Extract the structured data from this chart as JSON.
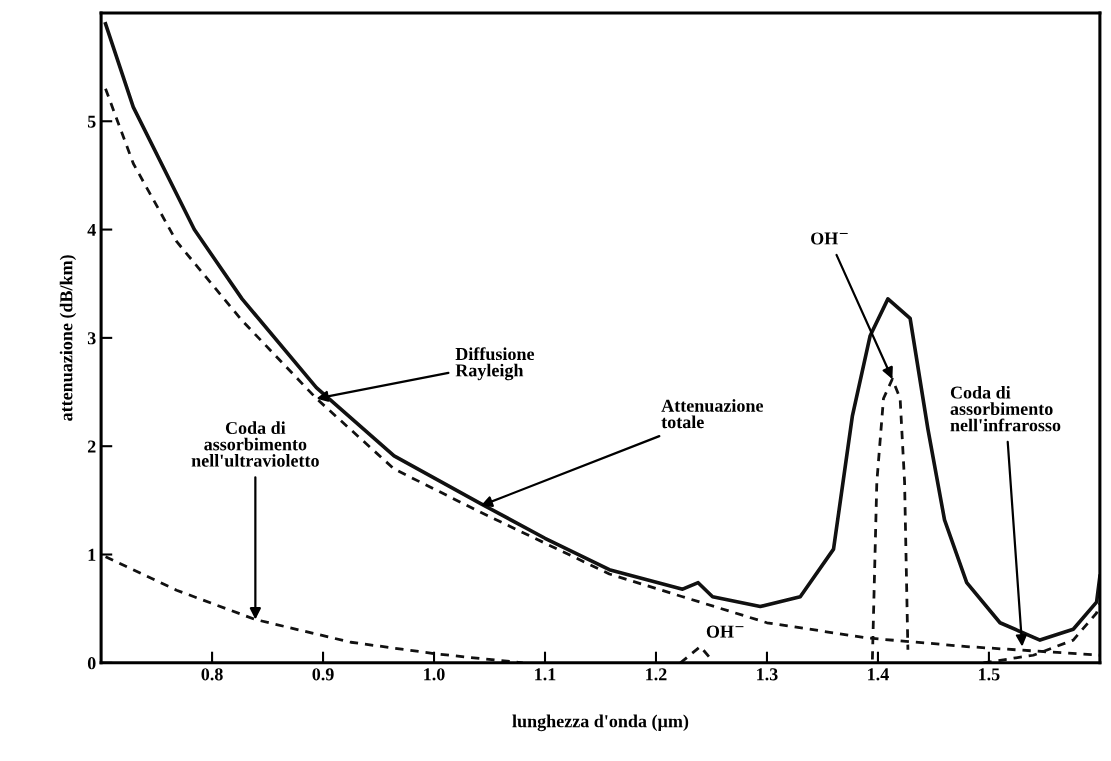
{
  "chart_data": {
    "type": "line",
    "xlabel": "lunghezza d'onda (µm)",
    "ylabel": "attenuazione (dB/km)",
    "xlim": [
      0.7,
      1.6
    ],
    "ylim": [
      0,
      6
    ],
    "xticks": [
      0.8,
      0.9,
      {
        "value": 1.0,
        "label": "1.0"
      },
      1.1,
      1.2,
      1.3,
      1.4,
      1.5
    ],
    "yticks": [
      0,
      1,
      2,
      3,
      4,
      5
    ],
    "grid": false,
    "marker": "none",
    "series": [
      {
        "color": "#111111",
        "line_style": "solid",
        "x": [
          0.704,
          0.729,
          0.784,
          0.827,
          0.894,
          0.964,
          1.042,
          1.1,
          1.158,
          1.224,
          1.238,
          1.251,
          1.294,
          1.33,
          1.36,
          1.377,
          1.393,
          1.409,
          1.429,
          1.445,
          1.46,
          1.48,
          1.51,
          1.546,
          1.576,
          1.597,
          1.6
        ],
        "values": [
          5.9,
          5.13,
          4.0,
          3.36,
          2.54,
          1.91,
          1.47,
          1.15,
          0.86,
          0.68,
          0.74,
          0.61,
          0.52,
          0.61,
          1.05,
          2.28,
          3.02,
          3.36,
          3.18,
          2.16,
          1.32,
          0.74,
          0.37,
          0.21,
          0.31,
          0.56,
          0.8
        ]
      },
      {
        "color": "#111111",
        "line_style": "dashed",
        "x": [
          0.704,
          0.729,
          0.768,
          0.827,
          0.894,
          0.964,
          1.042,
          1.158,
          1.224,
          1.3,
          1.39,
          1.48,
          1.6
        ],
        "values": [
          5.3,
          4.61,
          3.89,
          3.16,
          2.44,
          1.79,
          1.39,
          0.82,
          0.61,
          0.37,
          0.23,
          0.15,
          0.07
        ]
      },
      {
        "color": "#111111",
        "line_style": "dashed",
        "x": [
          0.704,
          0.768,
          0.839,
          0.925,
          1.004,
          1.08
        ],
        "values": [
          0.98,
          0.67,
          0.4,
          0.19,
          0.08,
          0.0
        ]
      },
      {
        "color": "#111111",
        "line_style": "dashed",
        "x": [
          1.395,
          1.399,
          1.405,
          1.413,
          1.42,
          1.424,
          1.427
        ],
        "values": [
          0.03,
          1.67,
          2.44,
          2.62,
          2.44,
          1.67,
          0.12
        ]
      },
      {
        "color": "#111111",
        "line_style": "dashed",
        "x": [
          1.222,
          1.24,
          1.25
        ],
        "values": [
          0.0,
          0.15,
          0.03
        ]
      },
      {
        "color": "#111111",
        "line_style": "dashed",
        "x": [
          1.495,
          1.54,
          1.576,
          1.597,
          1.6
        ],
        "values": [
          0.0,
          0.07,
          0.21,
          0.46,
          0.55
        ]
      }
    ],
    "annotations": [
      {
        "text": "Diffusione\nRayleigh",
        "x": 0.894,
        "y": 2.44
      },
      {
        "text": "Attenuazione\ntotale",
        "x": 1.042,
        "y": 1.45
      },
      {
        "text": "Coda di\nassorbimento\nnell'ultravioletto",
        "x": 0.839,
        "y": 0.4
      },
      {
        "text": "OH$^{−}$",
        "x": 1.413,
        "y": 2.62
      },
      {
        "text": "OH$^{−}$",
        "x": 1.245,
        "y": 0.12
      },
      {
        "text": "Coda di\nassorbimento\nnell'infrarosso",
        "x": 1.53,
        "y": 0.15
      }
    ]
  }
}
